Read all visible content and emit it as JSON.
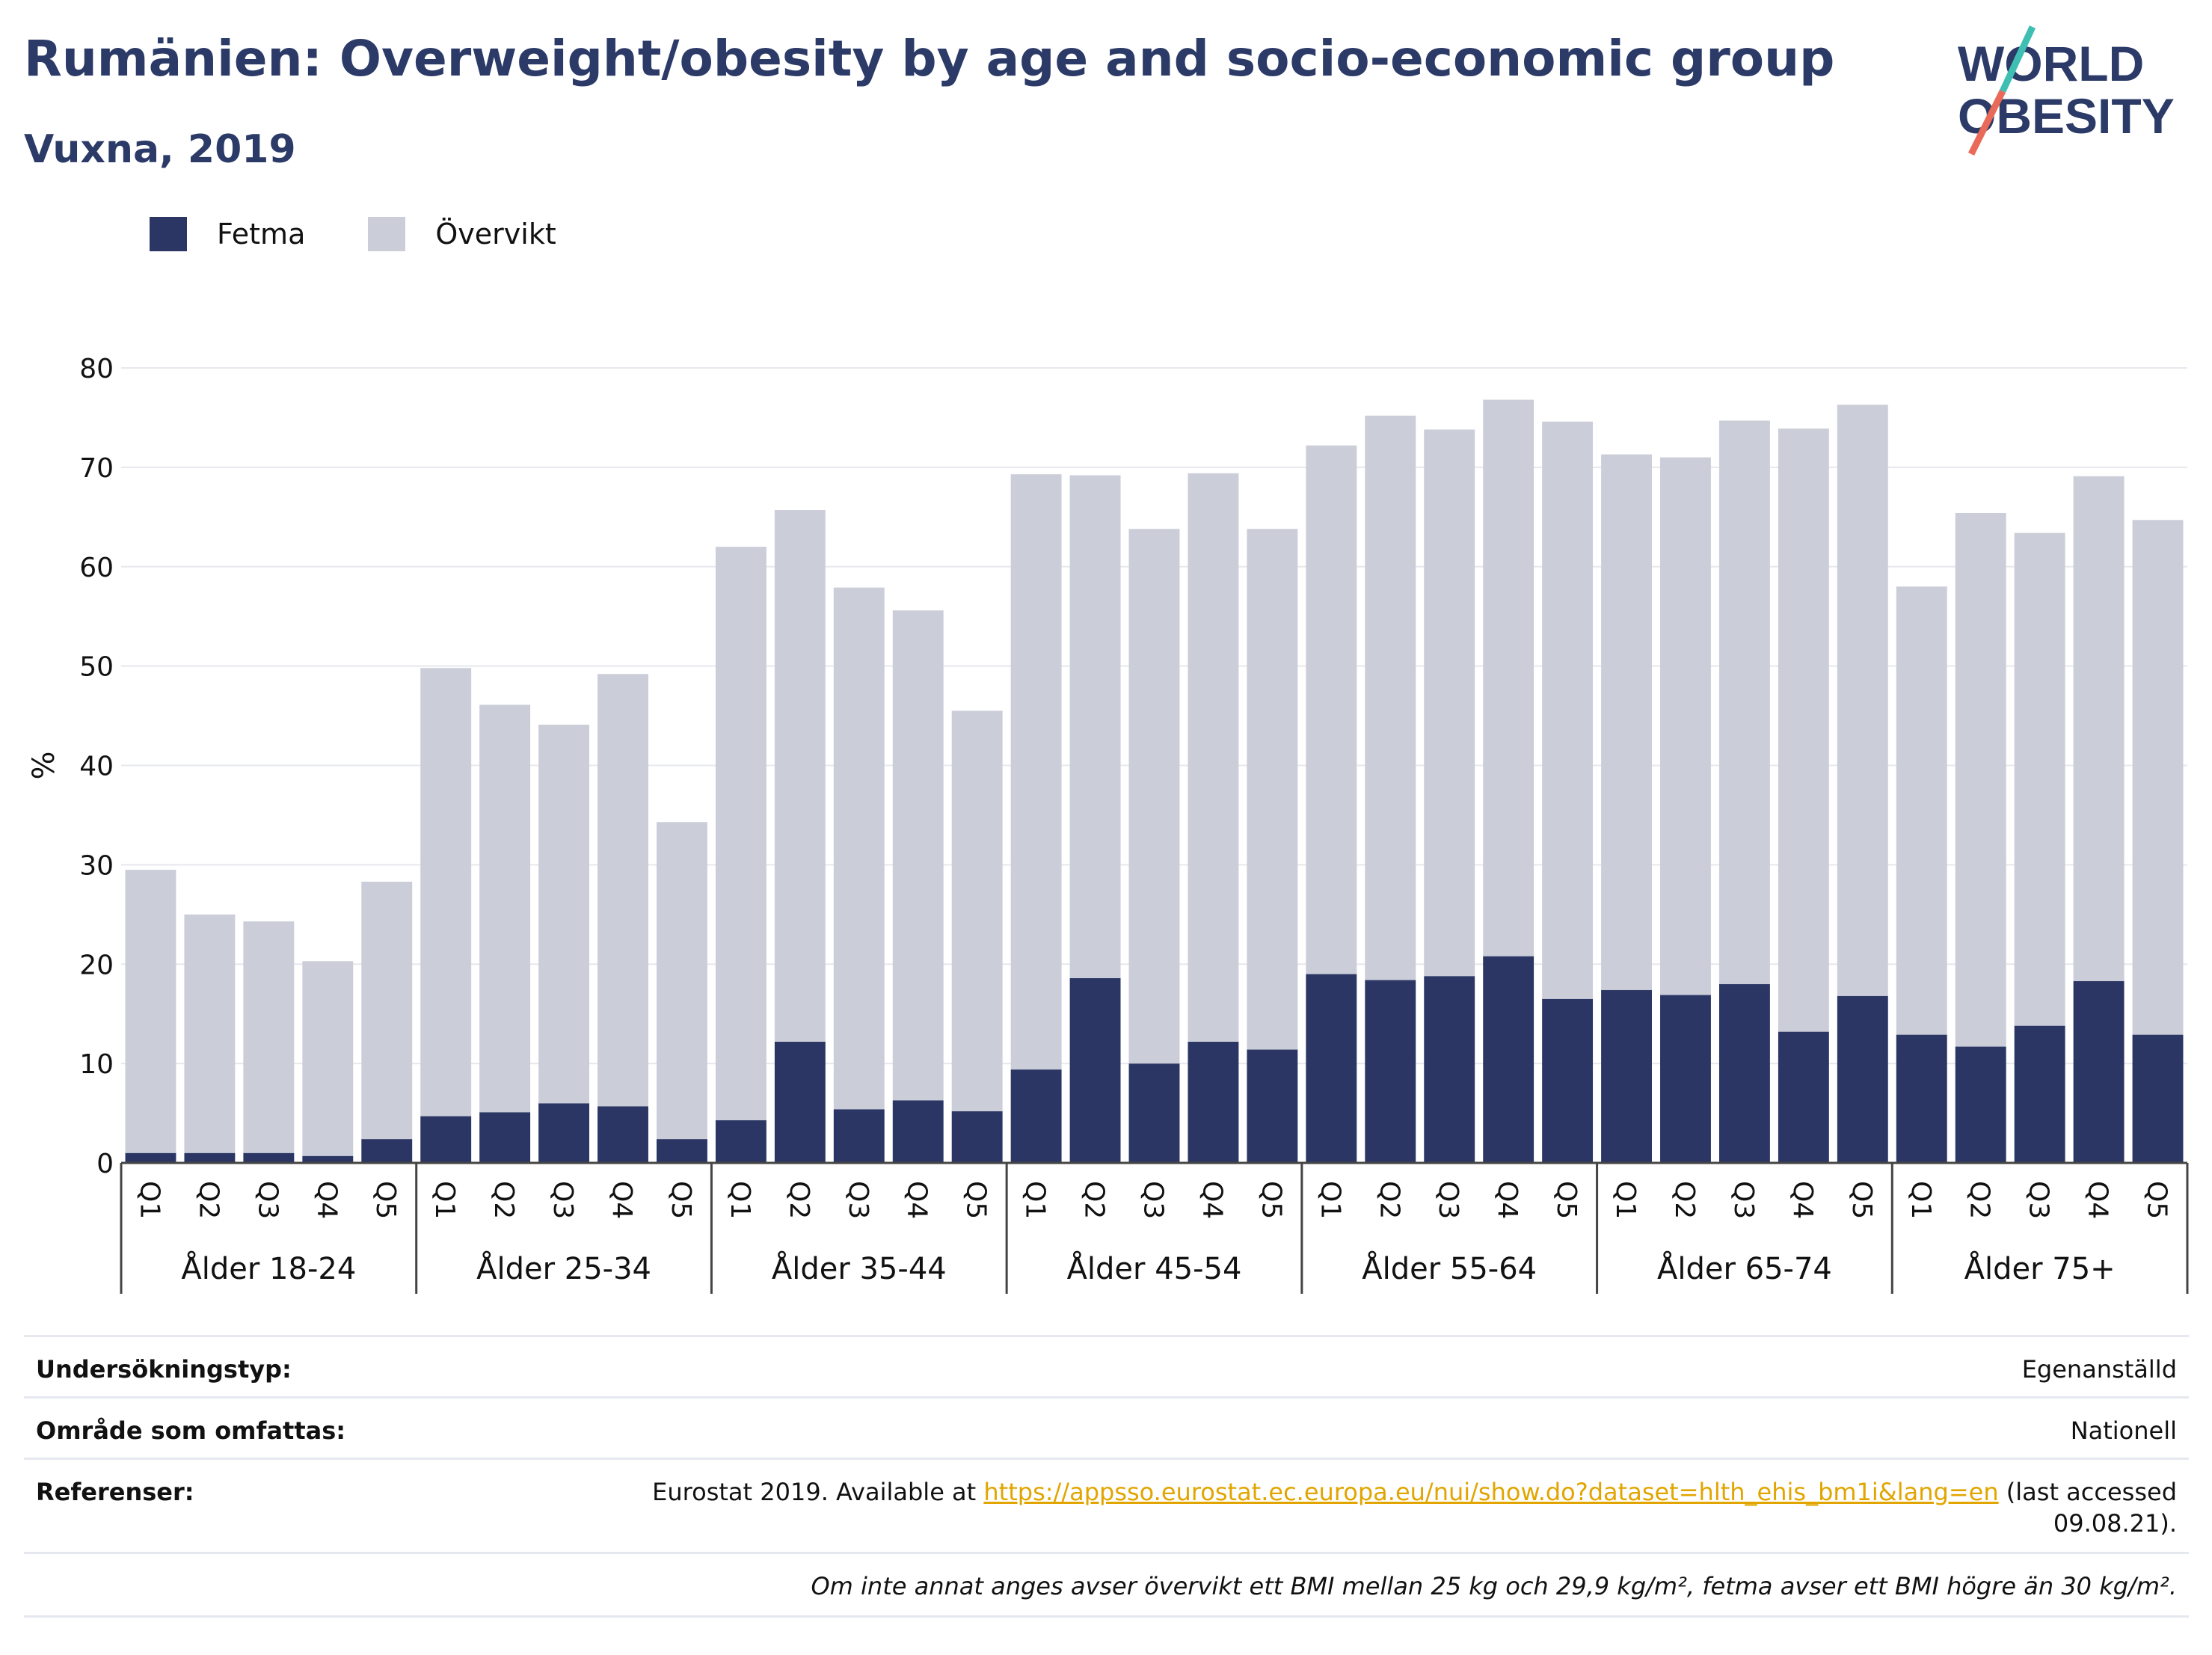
{
  "header": {
    "title": "Rumänien: Overweight/obesity by age and socio-economic group",
    "subtitle": "Vuxna, 2019"
  },
  "logo": {
    "line1": "WORLD",
    "line2": "OBESITY"
  },
  "legend": [
    {
      "label": "Fetma",
      "color": "#2b3664"
    },
    {
      "label": "Övervikt",
      "color": "#cbcdd8"
    }
  ],
  "chart_data": {
    "type": "bar",
    "stacked": true,
    "ylabel": "%",
    "ylim": [
      0,
      80
    ],
    "yticks": [
      0,
      10,
      20,
      30,
      40,
      50,
      60,
      70,
      80
    ],
    "grid": true,
    "legend_position": "top-left",
    "subcategories": [
      "Q1",
      "Q2",
      "Q3",
      "Q4",
      "Q5"
    ],
    "groups": [
      "Ålder 18-24",
      "Ålder 25-34",
      "Ålder 35-44",
      "Ålder 45-54",
      "Ålder 55-64",
      "Ålder 65-74",
      "Ålder 75+"
    ],
    "series": [
      {
        "name": "Fetma",
        "color": "#2b3664",
        "values": [
          [
            1.0,
            1.0,
            1.0,
            0.7,
            2.4
          ],
          [
            4.7,
            5.1,
            6.0,
            5.7,
            2.4
          ],
          [
            4.3,
            12.2,
            5.4,
            6.3,
            5.2
          ],
          [
            9.4,
            18.6,
            10.0,
            12.2,
            11.4
          ],
          [
            19.0,
            18.4,
            18.8,
            20.8,
            16.5
          ],
          [
            17.4,
            16.9,
            18.0,
            13.2,
            16.8
          ],
          [
            12.9,
            11.7,
            13.8,
            18.3,
            12.9
          ]
        ]
      },
      {
        "name": "Övervikt",
        "color": "#cbcdd8",
        "values": [
          [
            28.5,
            24.0,
            23.3,
            19.6,
            25.9
          ],
          [
            45.1,
            41.0,
            38.1,
            43.5,
            31.9
          ],
          [
            57.7,
            53.5,
            52.5,
            49.3,
            40.3
          ],
          [
            59.9,
            50.6,
            53.8,
            57.2,
            52.4
          ],
          [
            53.2,
            56.8,
            55.0,
            56.0,
            58.1
          ],
          [
            53.9,
            54.1,
            56.7,
            60.7,
            59.5
          ],
          [
            45.1,
            53.7,
            49.6,
            50.8,
            51.8
          ]
        ]
      }
    ]
  },
  "info": {
    "survey_type_label": "Undersökningstyp:",
    "survey_type_value": "Egenanställd",
    "coverage_label": "Område som omfattas:",
    "coverage_value": "Nationell",
    "references_label": "Referenser:",
    "references_prefix": "Eurostat 2019. Available at",
    "references_url": "https://appsso.eurostat.ec.europa.eu/nui/show.do?dataset=hlth_ehis_bm1i&lang=en",
    "references_suffix": "(last accessed",
    "references_date": "09.08.21).",
    "footnote": "Om inte annat anges avser övervikt ett BMI mellan 25 kg och 29,9 kg/m², fetma avser ett BMI högre än 30 kg/m²."
  }
}
